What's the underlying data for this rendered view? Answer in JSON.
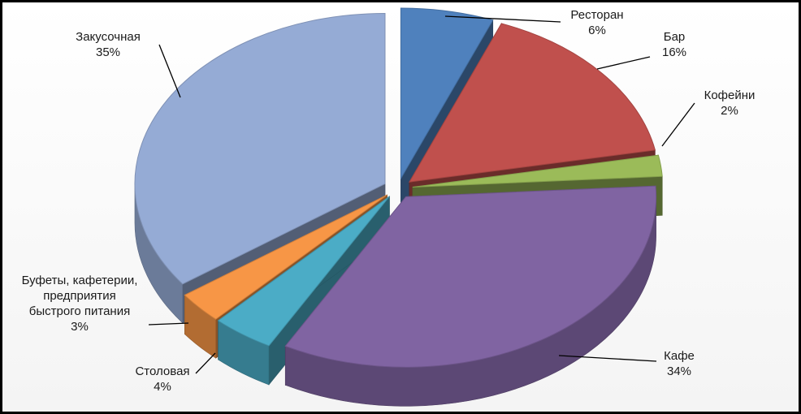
{
  "chart_data": {
    "type": "pie",
    "title": "",
    "categories": [
      "Ресторан",
      "Бар",
      "Кофейни",
      "Кафе",
      "Столовая",
      "Буфеты, кафетерии, предприятия быстрого питания",
      "Закусочная"
    ],
    "label_lines": [
      [
        "Ресторан"
      ],
      [
        "Бар"
      ],
      [
        "Кофейни"
      ],
      [
        "Кафе"
      ],
      [
        "Столовая"
      ],
      [
        "Буфеты, кафетерии,",
        "предприятия",
        "быстрого питания"
      ],
      [
        "Закусочная"
      ]
    ],
    "values": [
      6,
      16,
      2,
      34,
      4,
      3,
      35
    ],
    "value_labels": [
      "6%",
      "16%",
      "2%",
      "34%",
      "4%",
      "3%",
      "35%"
    ],
    "colors": [
      "#4F81BD",
      "#C0504D",
      "#9BBB59",
      "#8064A2",
      "#4BACC6",
      "#F79646",
      "#95ABD5"
    ],
    "legend": "none",
    "exploded": true,
    "three_d": true
  }
}
